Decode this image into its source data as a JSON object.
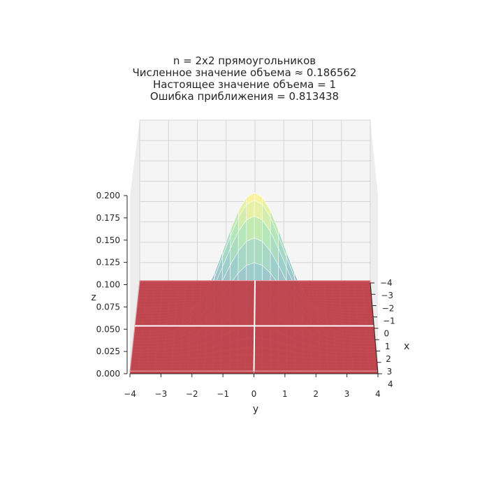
{
  "chart_data": {
    "type": "surface3d",
    "title_lines": [
      "n = 2x2 прямоугольников",
      "Численное значение объема ≈ 0.186562",
      "Настоящее значение объема = 1",
      "Ошибка приближения = 0.813438"
    ],
    "xlabel": "x",
    "ylabel": "y",
    "zlabel": "z",
    "x_ticks": [
      "−4",
      "−3",
      "−2",
      "−1",
      "0",
      "1",
      "2",
      "3",
      "4"
    ],
    "y_ticks": [
      "−4",
      "−3",
      "−2",
      "−1",
      "0",
      "1",
      "2",
      "3",
      "4"
    ],
    "z_ticks": [
      "0.000",
      "0.025",
      "0.050",
      "0.075",
      "0.100",
      "0.125",
      "0.150",
      "0.175",
      "0.200"
    ],
    "xlim": [
      -4,
      4
    ],
    "ylim": [
      -4,
      4
    ],
    "zlim": [
      0,
      0.2
    ],
    "surface": {
      "function": "standard bivariate normal density",
      "peak_z": 0.159,
      "colormap": "viridis-like (light)"
    },
    "rectangles": {
      "n_x": 2,
      "n_y": 2,
      "heights": [
        [
          0.0029,
          0.0029
        ],
        [
          0.0029,
          0.0029
        ]
      ],
      "color": "#c0414a"
    },
    "grid": true
  }
}
